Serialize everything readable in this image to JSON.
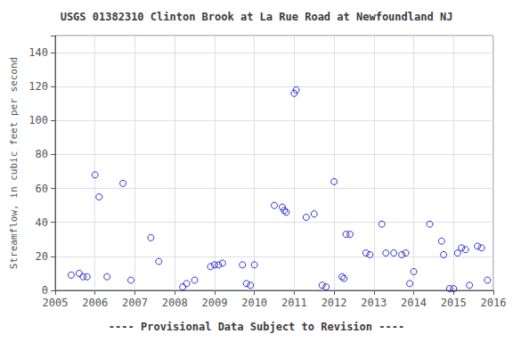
{
  "chart_data": {
    "type": "scatter",
    "title": "USGS 01382310 Clinton Brook at La Rue Road at Newfoundland NJ",
    "ylabel": "Streamflow, in cubic feet per second",
    "footnote": "---- Provisional Data Subject to Revision ----",
    "x": [
      2005.4,
      2005.6,
      2005.7,
      2005.8,
      2006.0,
      2006.1,
      2006.3,
      2006.7,
      2006.9,
      2007.4,
      2007.6,
      2008.2,
      2008.3,
      2008.5,
      2008.9,
      2009.0,
      2009.1,
      2009.2,
      2009.7,
      2009.8,
      2009.9,
      2010.0,
      2010.5,
      2010.7,
      2010.75,
      2010.8,
      2011.0,
      2011.05,
      2011.3,
      2011.5,
      2011.7,
      2011.8,
      2012.0,
      2012.2,
      2012.25,
      2012.3,
      2012.4,
      2012.8,
      2012.9,
      2013.2,
      2013.3,
      2013.5,
      2013.7,
      2013.8,
      2013.9,
      2014.0,
      2014.4,
      2014.7,
      2014.75,
      2014.9,
      2015.0,
      2015.1,
      2015.2,
      2015.3,
      2015.4,
      2015.6,
      2015.7,
      2015.85
    ],
    "values": [
      9,
      10,
      8,
      8,
      68,
      55,
      8,
      63,
      6,
      31,
      17,
      2,
      4,
      6,
      14,
      15,
      15,
      16,
      15,
      4,
      3,
      15,
      50,
      49,
      47,
      46,
      116,
      118,
      43,
      45,
      3,
      2,
      64,
      8,
      7,
      33,
      33,
      22,
      21,
      39,
      22,
      22,
      21,
      22,
      4,
      11,
      39,
      29,
      21,
      1,
      1,
      22,
      25,
      24,
      3,
      26,
      25,
      6
    ],
    "color": "#0000CC",
    "marker": "open_circle",
    "xlim": [
      2005,
      2016
    ],
    "xticks": [
      2005,
      2006,
      2007,
      2008,
      2009,
      2010,
      2011,
      2012,
      2013,
      2014,
      2015,
      2016
    ],
    "ylim": [
      0,
      150
    ],
    "yticks": [
      0,
      20,
      40,
      60,
      80,
      100,
      120,
      140
    ],
    "grid": true
  }
}
